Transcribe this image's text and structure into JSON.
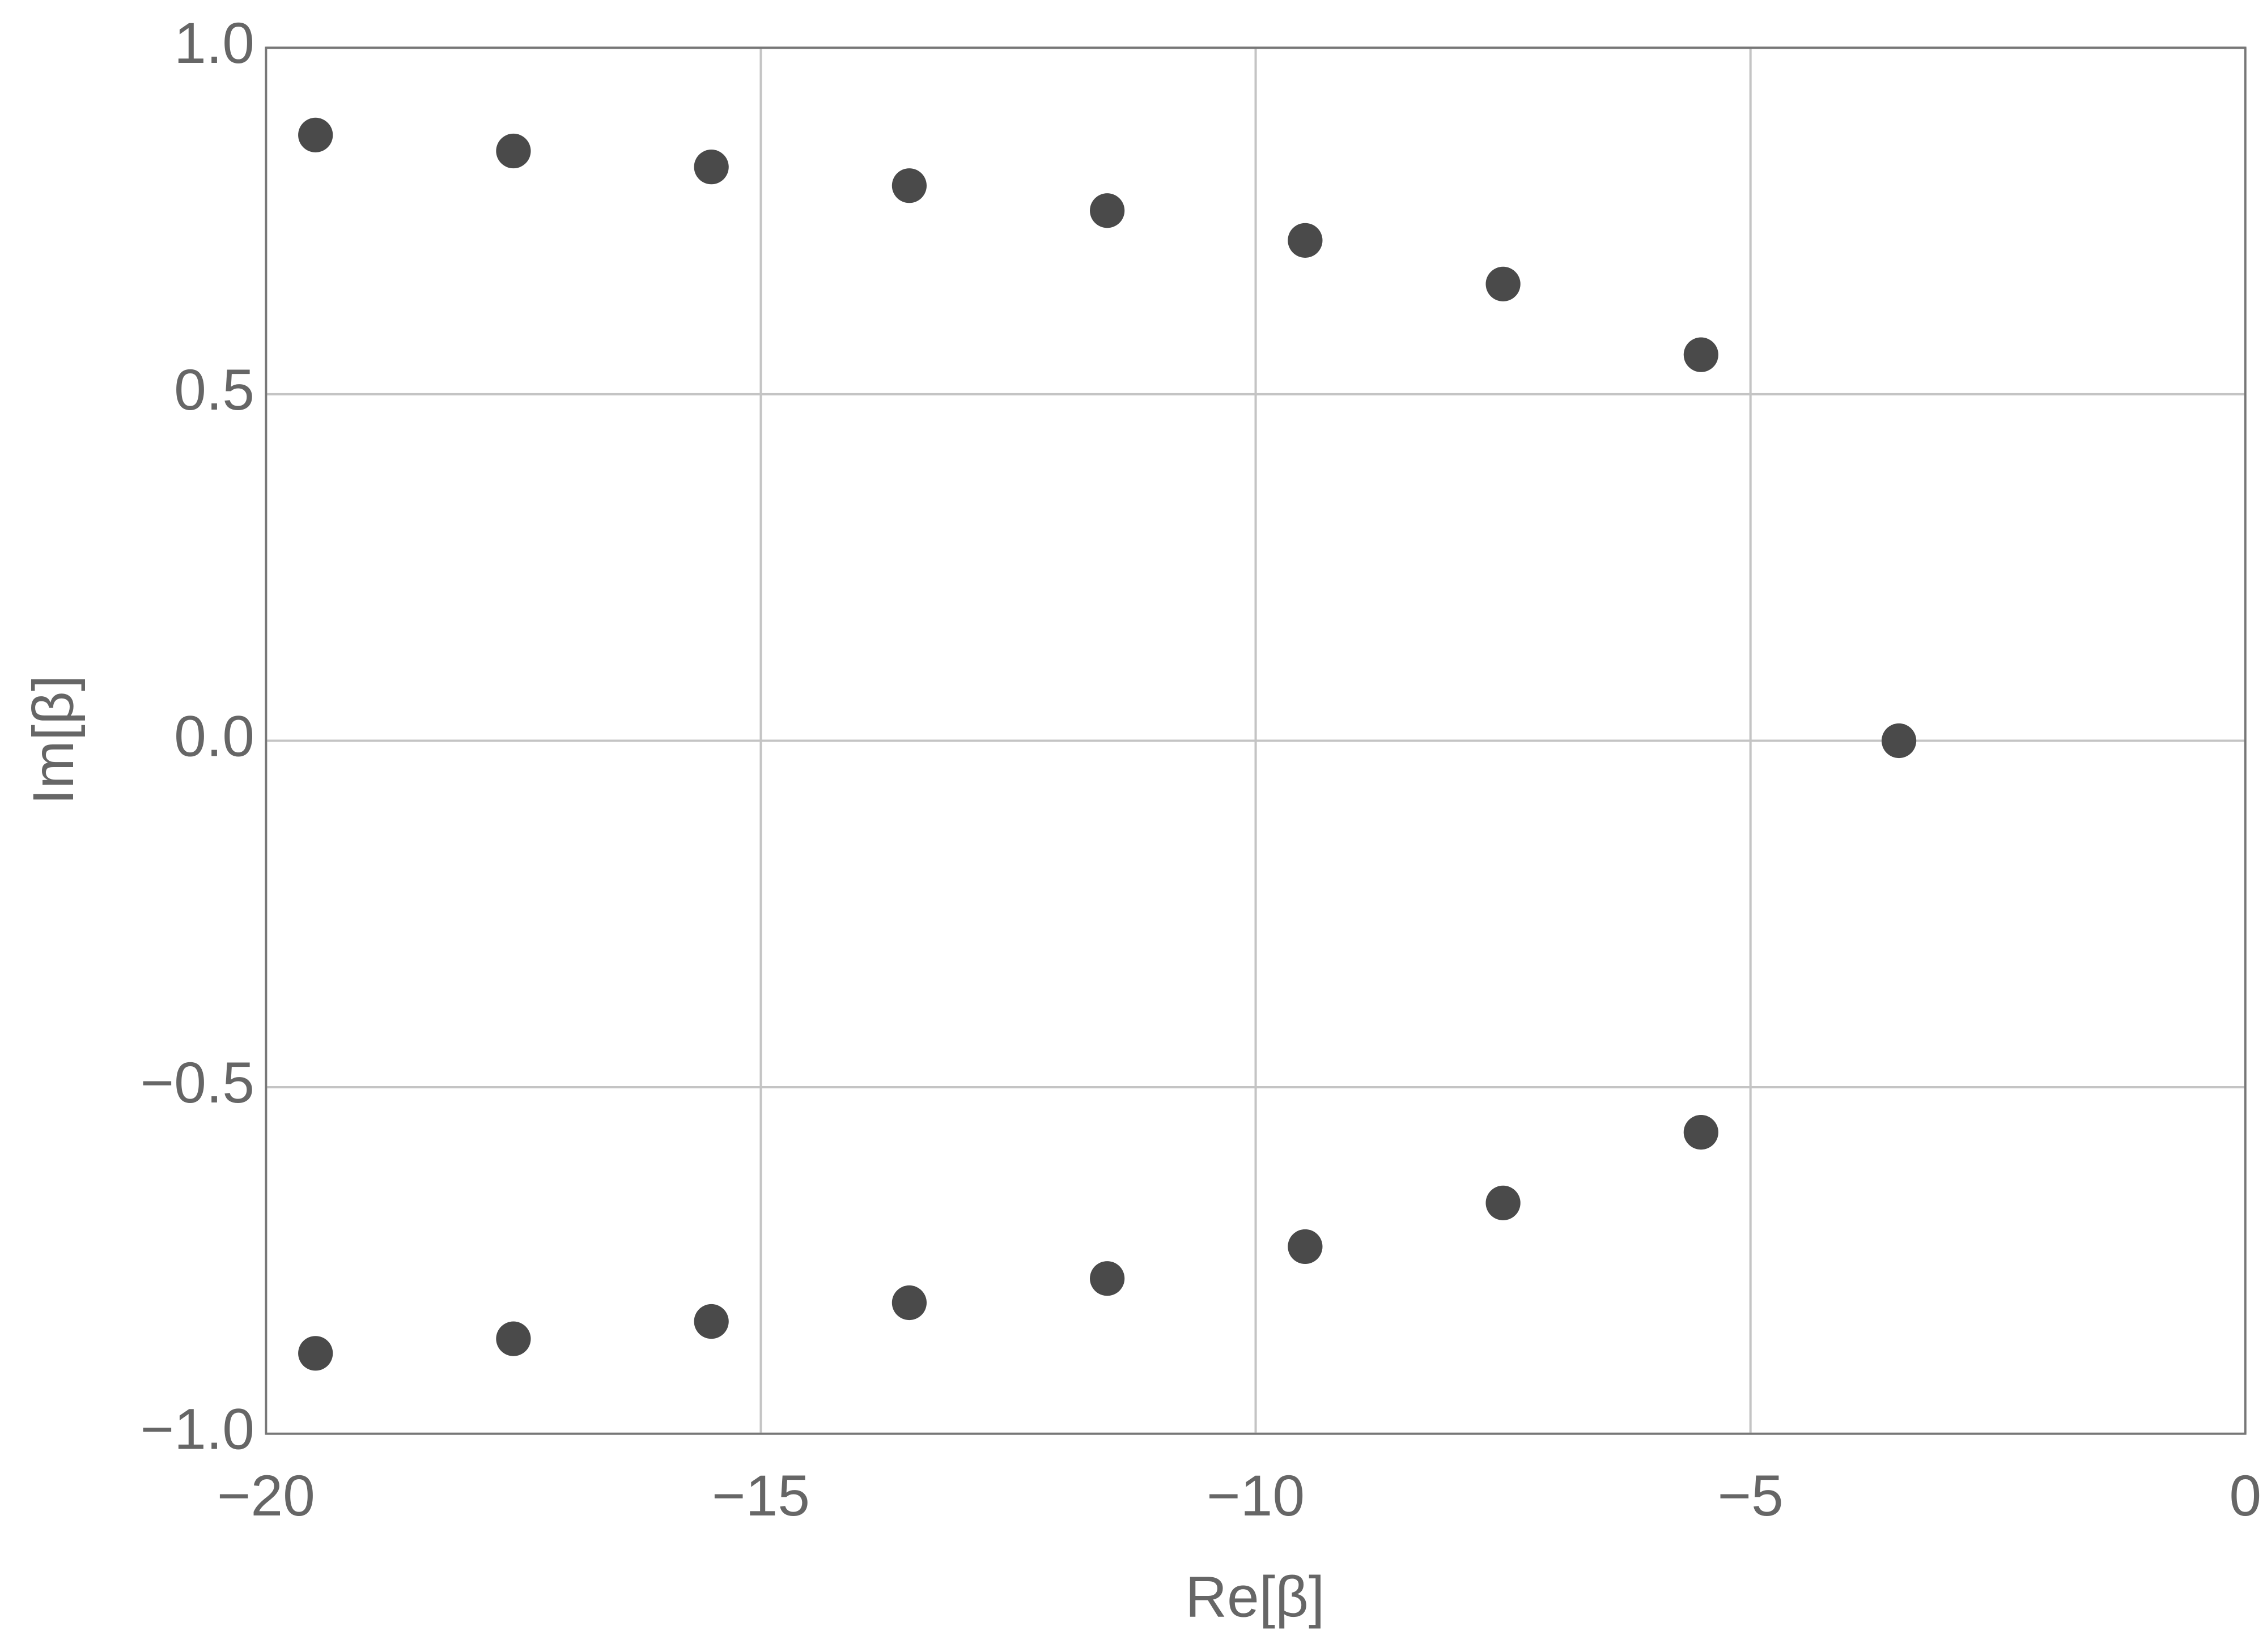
{
  "chart_data": {
    "type": "scatter",
    "x_label": "Re[β]",
    "y_label": "Im[β]",
    "x": [
      -19.5,
      -17.5,
      -15.5,
      -13.5,
      -11.5,
      -9.5,
      -7.5,
      -5.5,
      -3.5,
      -19.5,
      -17.5,
      -15.5,
      -13.5,
      -11.5,
      -9.5,
      -7.5,
      -5.5
    ],
    "values": [
      0.874,
      0.851,
      0.828,
      0.801,
      0.765,
      0.722,
      0.659,
      0.557,
      0,
      -0.884,
      -0.863,
      -0.838,
      -0.811,
      -0.776,
      -0.73,
      -0.667,
      -0.565
    ],
    "color": "#4a4a4a",
    "xlim": [
      -20,
      0
    ],
    "ylim": [
      -1,
      1
    ],
    "xticks": [
      {
        "value": -20,
        "label": "−20"
      },
      {
        "value": -15,
        "label": "−15"
      },
      {
        "value": -10,
        "label": "−10"
      },
      {
        "value": -5,
        "label": "−5"
      },
      0
    ],
    "yticks": [
      {
        "value": -1,
        "label": "−1.0"
      },
      {
        "value": -0.5,
        "label": "−0.5"
      },
      {
        "value": 0,
        "label": "0.0"
      },
      0.5,
      {
        "value": 1,
        "label": "1.0"
      }
    ],
    "grid": true
  }
}
